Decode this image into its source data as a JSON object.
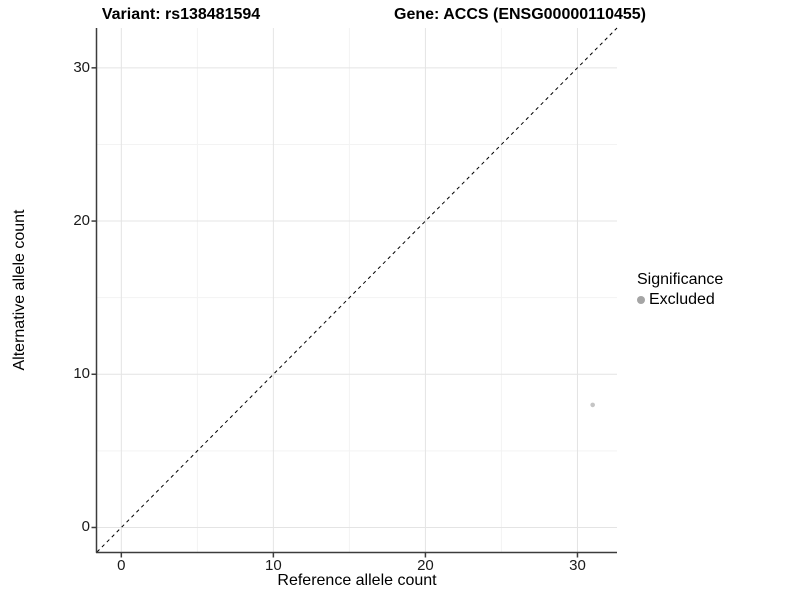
{
  "chart_data": {
    "type": "scatter",
    "title_variant": "Variant: rs138481594",
    "title_gene": "Gene: ACCS (ENSG00000110455)",
    "xlabel": "Reference allele count",
    "ylabel": "Alternative allele count",
    "xlim": [
      -1.6,
      32.6
    ],
    "ylim": [
      -1.6,
      32.6
    ],
    "x_major_ticks": [
      0,
      10,
      20,
      30
    ],
    "y_major_ticks": [
      0,
      10,
      20,
      30
    ],
    "x_minor_ticks": [
      5,
      15,
      25
    ],
    "y_minor_ticks": [
      5,
      15,
      25
    ],
    "grid": true,
    "reference_line": {
      "slope": 1,
      "intercept": 0,
      "style": "dashed",
      "color": "#000000"
    },
    "series": [
      {
        "name": "Excluded",
        "color": "#c5c5c5",
        "points": [
          {
            "x": 31,
            "y": 8
          }
        ]
      }
    ],
    "legend": {
      "title": "Significance",
      "position": "right",
      "items": [
        {
          "label": "Excluded",
          "color": "#a5a5a5"
        }
      ]
    },
    "style": {
      "background": "#ffffff",
      "grid_major_color": "#e4e4e4",
      "grid_minor_color": "#f3f3f3",
      "axis_line_color": "#3c3c3c",
      "tick_label_color": "#1a1a1a",
      "point_radius": 2.3,
      "legend_key_radius": 4
    }
  }
}
